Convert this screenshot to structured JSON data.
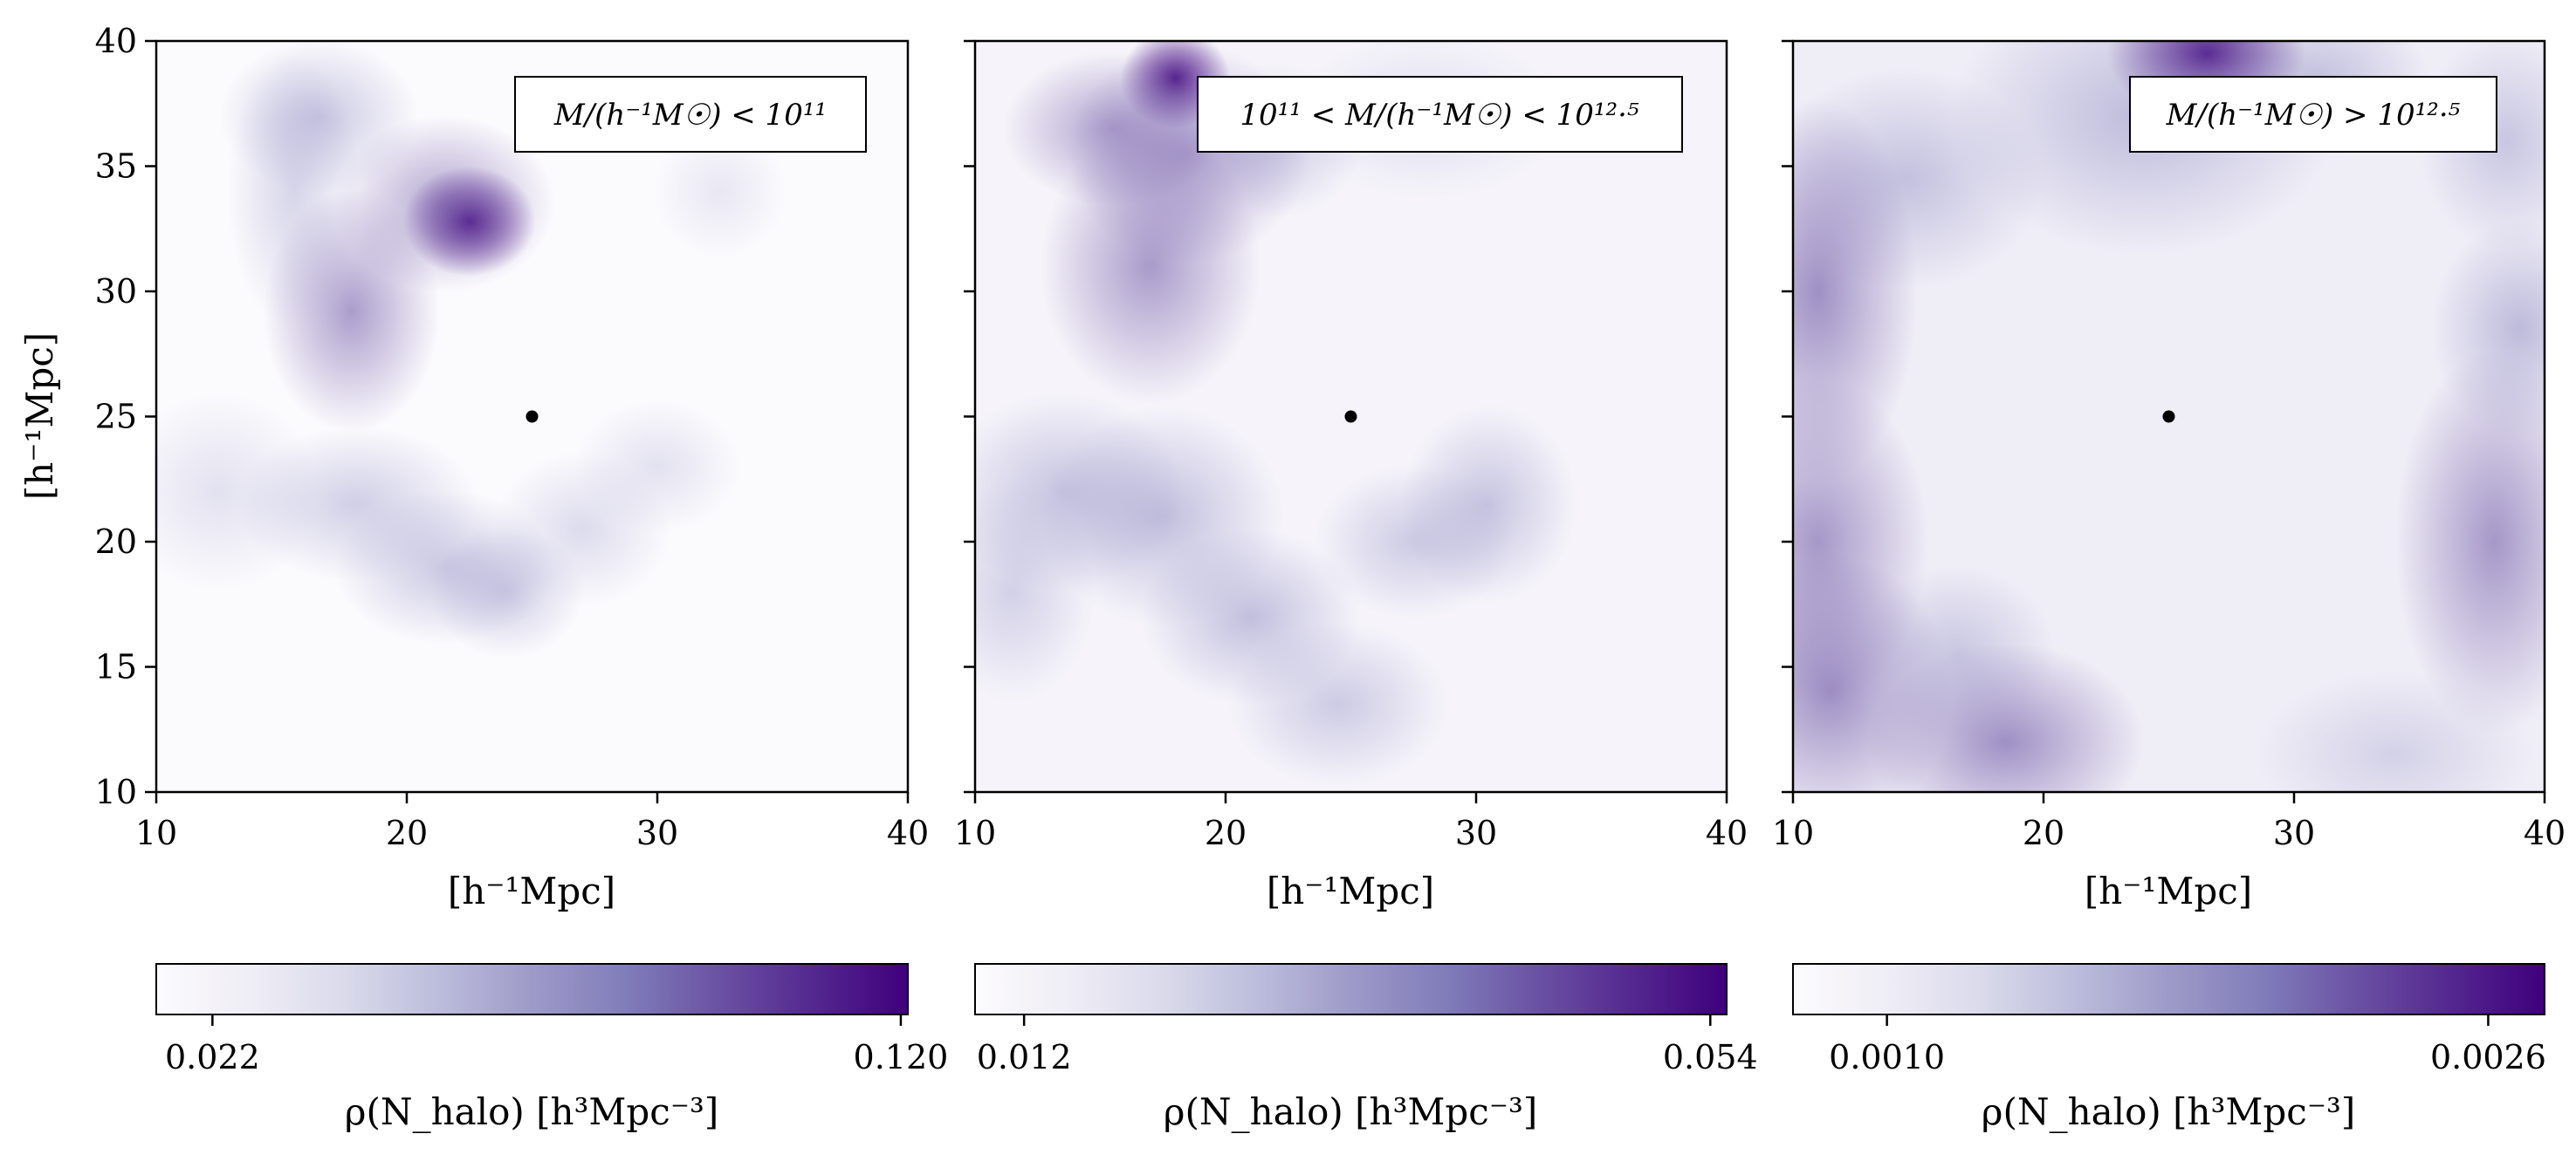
{
  "chart_data": [
    {
      "type": "heatmap",
      "title": "",
      "legend": "M/(h⁻¹M☉) < 10¹¹",
      "legend_placement": "top-right",
      "xlabel": "[h⁻¹Mpc]",
      "ylabel": "[h⁻¹Mpc]",
      "xlim": [
        10,
        40
      ],
      "ylim": [
        10,
        40
      ],
      "xticks": [
        "10",
        "20",
        "30",
        "40"
      ],
      "yticks": [
        "10",
        "15",
        "20",
        "25",
        "30",
        "35",
        "40"
      ],
      "center_marker": {
        "x": 25,
        "y": 25
      },
      "colormap": "Purples",
      "colorbar": {
        "label": "ρ(N_halo)  [h³Mpc⁻³]",
        "ticks": [
          "0.022",
          "0.120"
        ],
        "tick_values": [
          0.022,
          0.12
        ],
        "range": [
          0.014,
          0.121
        ]
      },
      "density_features": [
        {
          "x": 22.5,
          "y": 32.8,
          "sx": 1.2,
          "sy": 1.0,
          "w": 0.95
        },
        {
          "x": 21.5,
          "y": 33.5,
          "sx": 2.0,
          "sy": 1.6,
          "w": 0.5
        },
        {
          "x": 17.8,
          "y": 29.2,
          "sx": 1.6,
          "sy": 2.2,
          "w": 0.55
        },
        {
          "x": 16.5,
          "y": 37.0,
          "sx": 1.8,
          "sy": 1.4,
          "w": 0.4
        },
        {
          "x": 15.5,
          "y": 34.0,
          "sx": 1.2,
          "sy": 2.5,
          "w": 0.3
        },
        {
          "x": 18.0,
          "y": 21.5,
          "sx": 2.2,
          "sy": 1.4,
          "w": 0.35
        },
        {
          "x": 21.5,
          "y": 19.0,
          "sx": 2.0,
          "sy": 1.4,
          "w": 0.4
        },
        {
          "x": 24.0,
          "y": 18.0,
          "sx": 1.4,
          "sy": 1.2,
          "w": 0.35
        },
        {
          "x": 27.0,
          "y": 20.5,
          "sx": 1.6,
          "sy": 1.4,
          "w": 0.25
        },
        {
          "x": 30.0,
          "y": 23.0,
          "sx": 1.5,
          "sy": 1.2,
          "w": 0.2
        },
        {
          "x": 12.5,
          "y": 22.0,
          "sx": 1.8,
          "sy": 1.8,
          "w": 0.2
        },
        {
          "x": 32.5,
          "y": 34.0,
          "sx": 1.2,
          "sy": 1.2,
          "w": 0.15
        }
      ]
    },
    {
      "type": "heatmap",
      "title": "",
      "legend": "10¹¹ < M/(h⁻¹M☉) < 10¹²·⁵",
      "legend_placement": "top-right",
      "xlabel": "[h⁻¹Mpc]",
      "ylabel": "",
      "xlim": [
        10,
        40
      ],
      "ylim": [
        10,
        40
      ],
      "xticks": [
        "10",
        "20",
        "30",
        "40"
      ],
      "yticks": [],
      "center_marker": {
        "x": 25,
        "y": 25
      },
      "colormap": "Purples",
      "colorbar": {
        "label": "ρ(N_halo)  [h³Mpc⁻³]",
        "ticks": [
          "0.012",
          "0.054"
        ],
        "tick_values": [
          0.012,
          0.054
        ],
        "range": [
          0.009,
          0.055
        ]
      },
      "density_features": [
        {
          "x": 18.0,
          "y": 38.5,
          "sx": 1.0,
          "sy": 0.9,
          "w": 0.95
        },
        {
          "x": 15.5,
          "y": 36.5,
          "sx": 2.0,
          "sy": 1.4,
          "w": 0.5
        },
        {
          "x": 18.5,
          "y": 35.5,
          "sx": 2.2,
          "sy": 2.0,
          "w": 0.5
        },
        {
          "x": 17.0,
          "y": 31.0,
          "sx": 2.0,
          "sy": 2.5,
          "w": 0.55
        },
        {
          "x": 22.0,
          "y": 36.0,
          "sx": 1.6,
          "sy": 1.4,
          "w": 0.35
        },
        {
          "x": 13.5,
          "y": 22.0,
          "sx": 2.2,
          "sy": 1.8,
          "w": 0.4
        },
        {
          "x": 17.5,
          "y": 21.0,
          "sx": 2.2,
          "sy": 2.0,
          "w": 0.45
        },
        {
          "x": 21.0,
          "y": 17.0,
          "sx": 2.0,
          "sy": 1.6,
          "w": 0.45
        },
        {
          "x": 24.5,
          "y": 13.5,
          "sx": 2.0,
          "sy": 1.5,
          "w": 0.35
        },
        {
          "x": 27.5,
          "y": 20.0,
          "sx": 1.8,
          "sy": 1.4,
          "w": 0.35
        },
        {
          "x": 30.5,
          "y": 21.5,
          "sx": 1.6,
          "sy": 1.8,
          "w": 0.4
        },
        {
          "x": 11.5,
          "y": 18.0,
          "sx": 1.5,
          "sy": 2.0,
          "w": 0.3
        },
        {
          "x": 28.0,
          "y": 37.0,
          "sx": 2.5,
          "sy": 1.5,
          "w": 0.2
        }
      ]
    },
    {
      "type": "heatmap",
      "title": "",
      "legend": "M/(h⁻¹M☉) > 10¹²·⁵",
      "legend_placement": "top-right",
      "xlabel": "[h⁻¹Mpc]",
      "ylabel": "",
      "xlim": [
        10,
        40
      ],
      "ylim": [
        10,
        40
      ],
      "xticks": [
        "10",
        "20",
        "30",
        "40"
      ],
      "yticks": [],
      "center_marker": {
        "x": 25,
        "y": 25
      },
      "colormap": "Purples",
      "colorbar": {
        "label": "ρ(N_halo)  [h³Mpc⁻³]",
        "ticks": [
          "0.0010",
          "0.0026"
        ],
        "tick_values": [
          0.001,
          0.0026
        ],
        "range": [
          0.00075,
          0.00275
        ]
      },
      "density_features": [
        {
          "x": 26.5,
          "y": 39.5,
          "sx": 1.8,
          "sy": 1.2,
          "w": 0.95
        },
        {
          "x": 24.0,
          "y": 37.0,
          "sx": 3.5,
          "sy": 2.5,
          "w": 0.45
        },
        {
          "x": 14.5,
          "y": 34.5,
          "sx": 2.5,
          "sy": 2.0,
          "w": 0.4
        },
        {
          "x": 11.0,
          "y": 30.0,
          "sx": 1.8,
          "sy": 3.5,
          "w": 0.6
        },
        {
          "x": 11.0,
          "y": 20.0,
          "sx": 2.0,
          "sy": 3.0,
          "w": 0.55
        },
        {
          "x": 11.5,
          "y": 14.0,
          "sx": 2.2,
          "sy": 2.5,
          "w": 0.6
        },
        {
          "x": 18.5,
          "y": 12.0,
          "sx": 2.5,
          "sy": 1.8,
          "w": 0.6
        },
        {
          "x": 16.5,
          "y": 15.5,
          "sx": 1.8,
          "sy": 1.6,
          "w": 0.35
        },
        {
          "x": 38.0,
          "y": 20.0,
          "sx": 1.8,
          "sy": 3.5,
          "w": 0.55
        },
        {
          "x": 39.0,
          "y": 28.5,
          "sx": 1.6,
          "sy": 2.0,
          "w": 0.45
        },
        {
          "x": 38.5,
          "y": 36.0,
          "sx": 1.6,
          "sy": 2.0,
          "w": 0.35
        },
        {
          "x": 31.0,
          "y": 38.5,
          "sx": 2.0,
          "sy": 1.4,
          "w": 0.4
        },
        {
          "x": 34.0,
          "y": 11.5,
          "sx": 2.5,
          "sy": 1.5,
          "w": 0.25
        }
      ]
    }
  ]
}
